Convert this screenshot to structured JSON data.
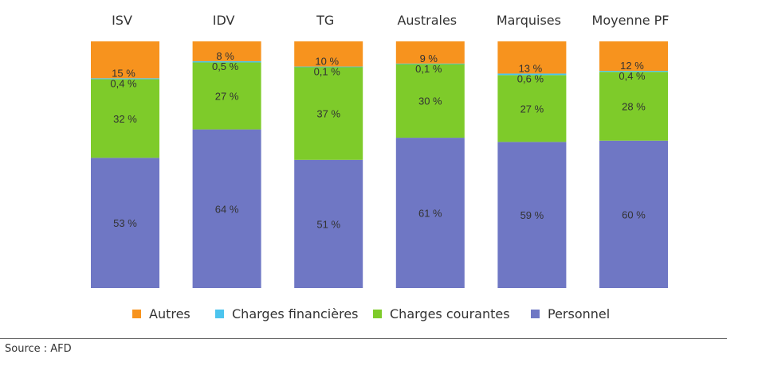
{
  "chart_data": {
    "type": "bar",
    "stacked": true,
    "percent": true,
    "categories": [
      "ISV",
      "IDV",
      "TG",
      "Australes",
      "Marquises",
      "Moyenne PF"
    ],
    "series": [
      {
        "name": "Personnel",
        "color": "#6f77c4",
        "values": [
          53,
          64,
          51,
          61,
          59,
          60
        ],
        "labels": [
          "53 %",
          "64 %",
          "51 %",
          "61 %",
          "59 %",
          "60 %"
        ]
      },
      {
        "name": "Charges courantes",
        "color": "#7ecb2a",
        "values": [
          32,
          27,
          37,
          30,
          27,
          28
        ],
        "labels": [
          "32 %",
          "27 %",
          "37 %",
          "30 %",
          "27 %",
          "28 %"
        ]
      },
      {
        "name": "Charges financières",
        "color": "#4cc4ee",
        "values": [
          0.4,
          0.5,
          0.1,
          0.1,
          0.6,
          0.4
        ],
        "labels": [
          "0,4 %",
          "0,5 %",
          "0,1 %",
          "0,1 %",
          "0,6 %",
          "0,4 %"
        ]
      },
      {
        "name": "Autres",
        "color": "#f7931e",
        "values": [
          15,
          8,
          10,
          9,
          13,
          12
        ],
        "labels": [
          "15 %",
          "8 %",
          "10 %",
          "9 %",
          "13 %",
          "12 %"
        ]
      }
    ],
    "legend": [
      {
        "name": "Autres",
        "color": "#f7931e"
      },
      {
        "name": "Charges financières",
        "color": "#4cc4ee"
      },
      {
        "name": "Charges courantes",
        "color": "#7ecb2a"
      },
      {
        "name": "Personnel",
        "color": "#6f77c4"
      }
    ],
    "legend_position": "bottom",
    "ylim": [
      0,
      100
    ]
  },
  "source": "Source : AFD"
}
